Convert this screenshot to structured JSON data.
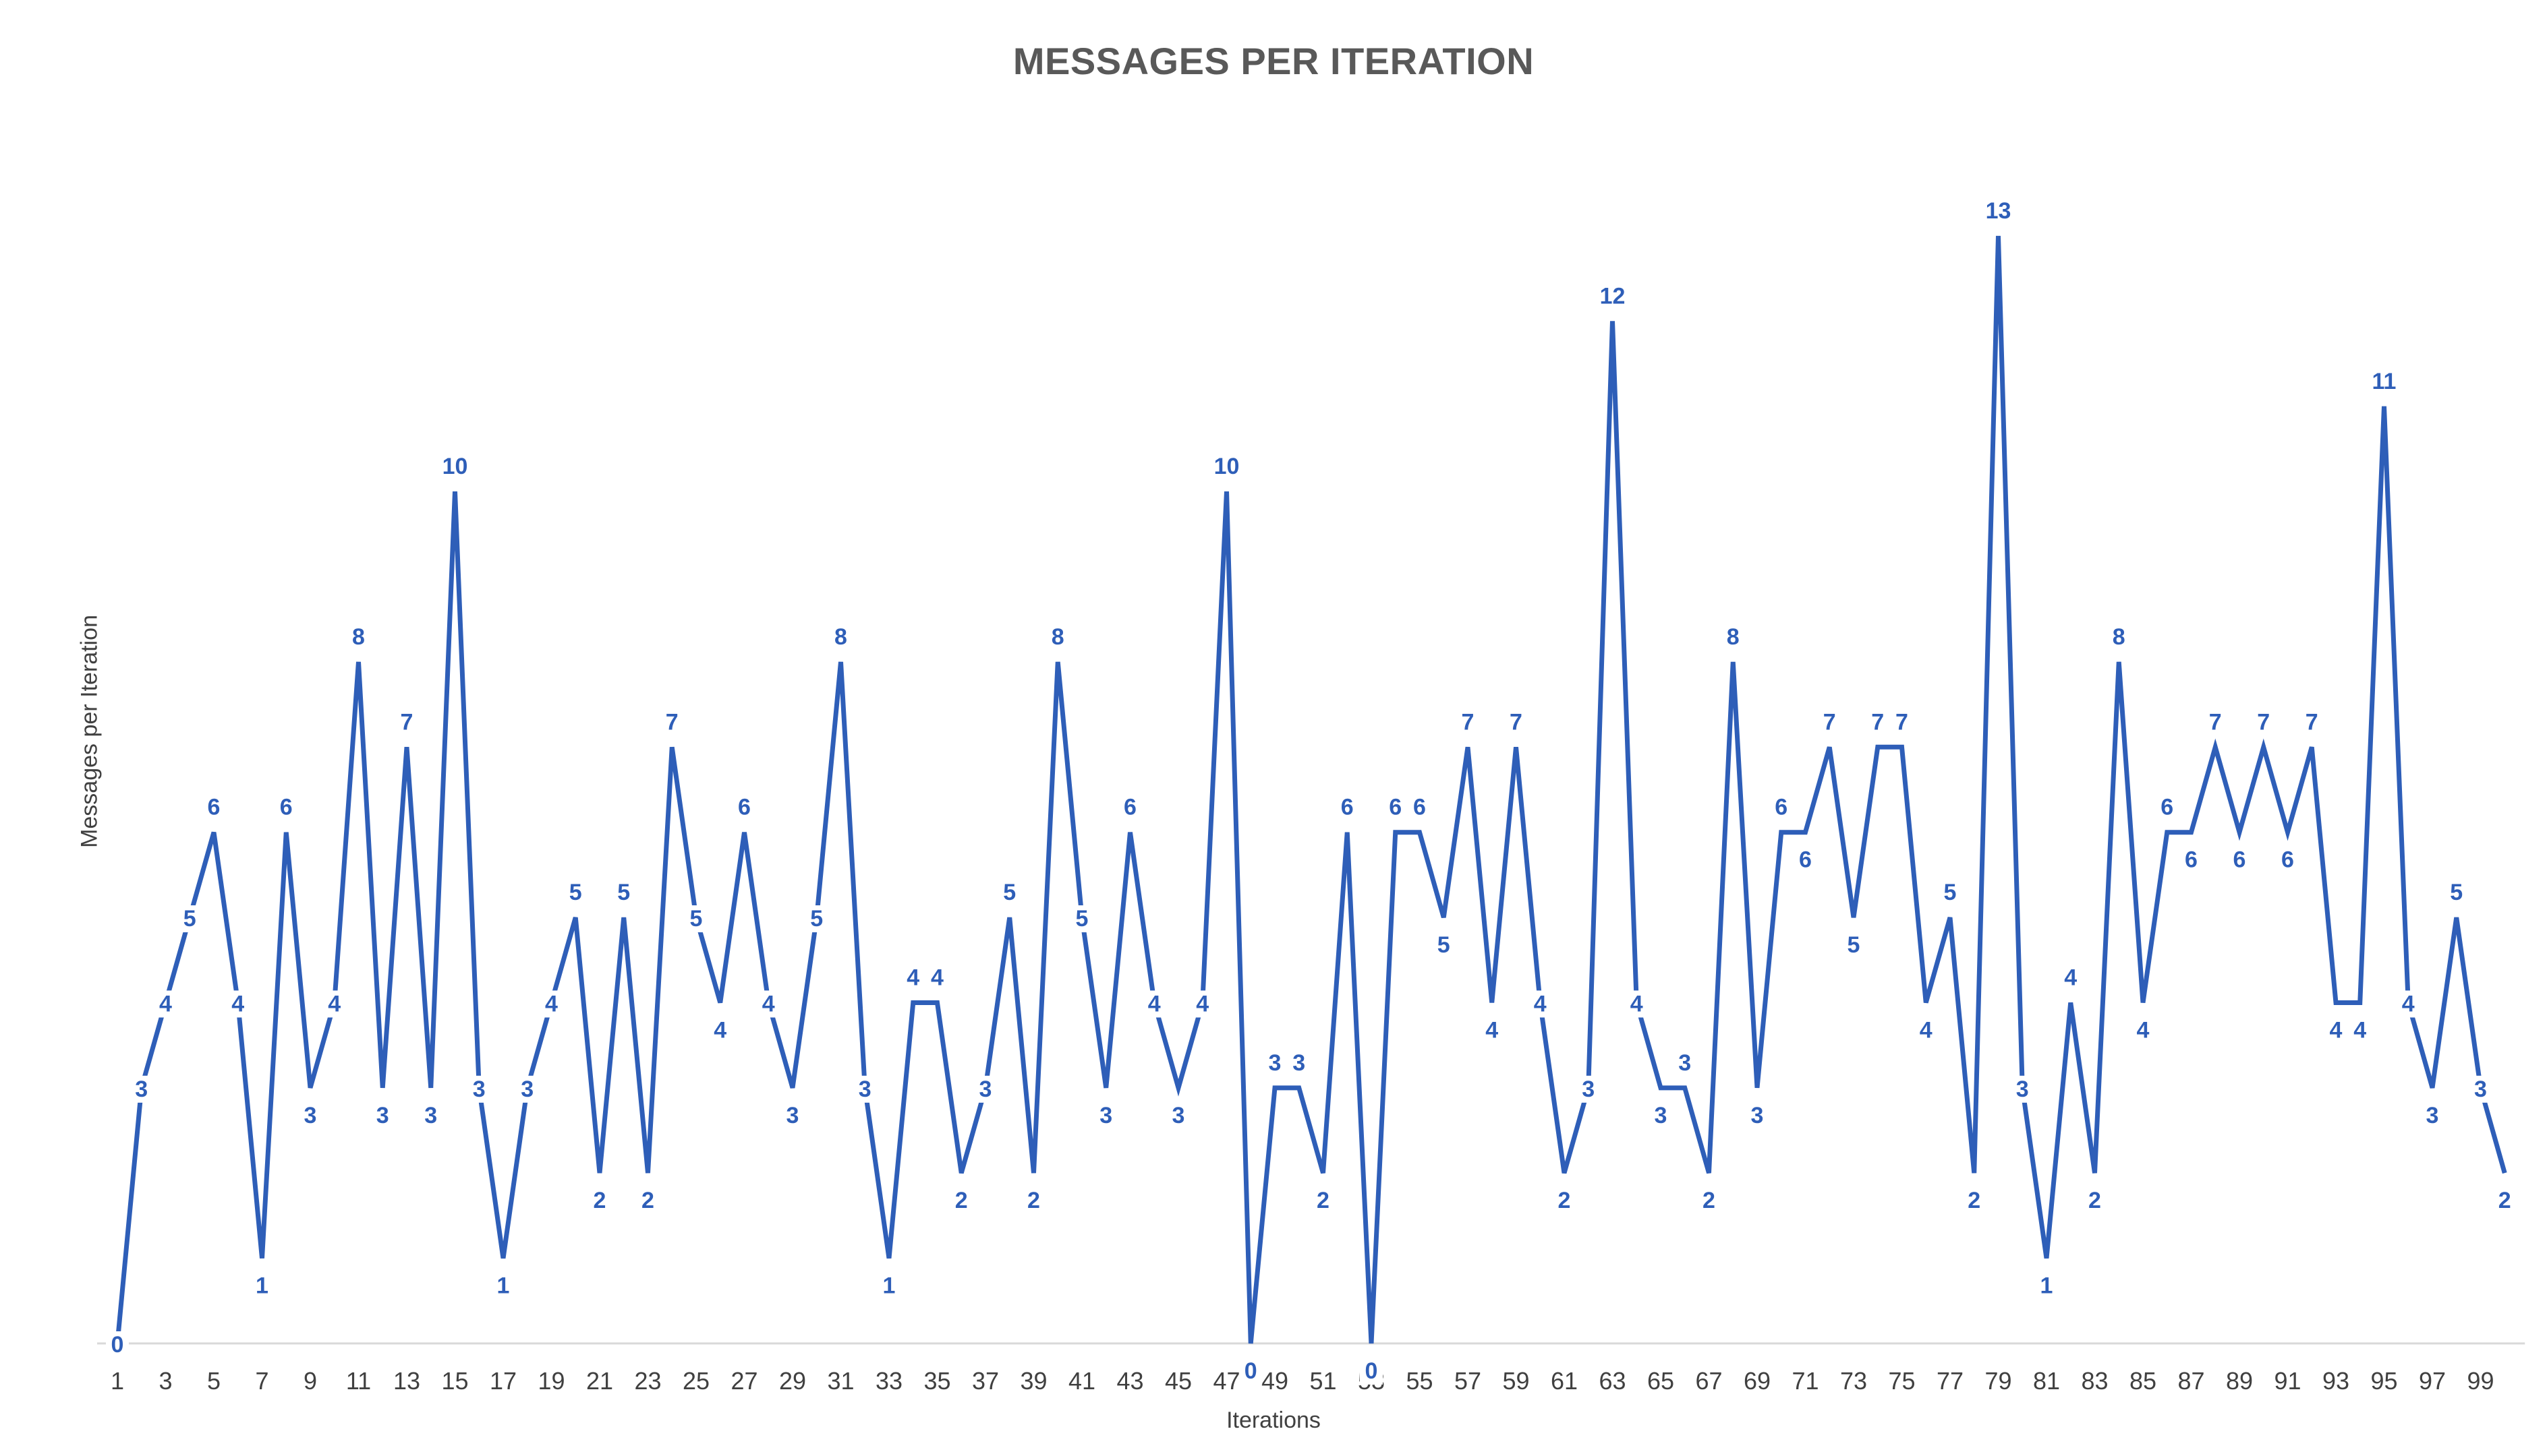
{
  "chart_data": {
    "type": "line",
    "title": "MESSAGES PER ITERATION",
    "xlabel": "Iterations",
    "ylabel": "Messages per Iteration",
    "x": [
      1,
      2,
      3,
      4,
      5,
      6,
      7,
      8,
      9,
      10,
      11,
      12,
      13,
      14,
      15,
      16,
      17,
      18,
      19,
      20,
      21,
      22,
      23,
      24,
      25,
      26,
      27,
      28,
      29,
      30,
      31,
      32,
      33,
      34,
      35,
      36,
      37,
      38,
      39,
      40,
      41,
      42,
      43,
      44,
      45,
      46,
      47,
      48,
      49,
      50,
      51,
      52,
      53,
      54,
      55,
      56,
      57,
      58,
      59,
      60,
      61,
      62,
      63,
      64,
      65,
      66,
      67,
      68,
      69,
      70,
      71,
      72,
      73,
      74,
      75,
      76,
      77,
      78,
      79,
      80,
      81,
      82,
      83,
      84,
      85,
      86,
      87,
      88,
      89,
      90,
      91,
      92,
      93,
      94,
      95,
      96,
      97,
      98,
      99,
      100
    ],
    "tick_labels": [
      "1",
      "3",
      "5",
      "7",
      "9",
      "11",
      "13",
      "15",
      "17",
      "19",
      "21",
      "23",
      "25",
      "27",
      "29",
      "31",
      "33",
      "35",
      "37",
      "39",
      "41",
      "43",
      "45",
      "47",
      "49",
      "51",
      "53",
      "55",
      "57",
      "59",
      "61",
      "63",
      "65",
      "67",
      "69",
      "71",
      "73",
      "75",
      "77",
      "79",
      "81",
      "83",
      "85",
      "87",
      "89",
      "91",
      "93",
      "95",
      "97",
      "99"
    ],
    "series": [
      {
        "values": [
          0,
          3,
          4,
          5,
          6,
          4,
          1,
          6,
          3,
          4,
          8,
          3,
          7,
          3,
          10,
          3,
          1,
          3,
          4,
          5,
          2,
          5,
          2,
          7,
          5,
          4,
          6,
          4,
          3,
          5,
          8,
          3,
          1,
          4,
          4,
          2,
          3,
          5,
          2,
          8,
          5,
          3,
          6,
          4,
          3,
          4,
          10,
          0,
          3,
          3,
          2,
          6,
          0,
          6,
          6,
          5,
          7,
          4,
          7,
          4,
          2,
          3,
          12,
          4,
          3,
          3,
          2,
          8,
          3,
          6,
          6,
          7,
          5,
          7,
          7,
          4,
          5,
          2,
          13,
          3,
          1,
          4,
          2,
          8,
          4,
          6,
          6,
          7,
          6,
          7,
          6,
          7,
          4,
          4,
          11,
          4,
          3,
          5,
          3,
          2
        ],
        "color": "#2e5eb8"
      }
    ],
    "ylim": [
      0,
      13
    ],
    "grid": false,
    "legend": false,
    "data_labels": true
  }
}
